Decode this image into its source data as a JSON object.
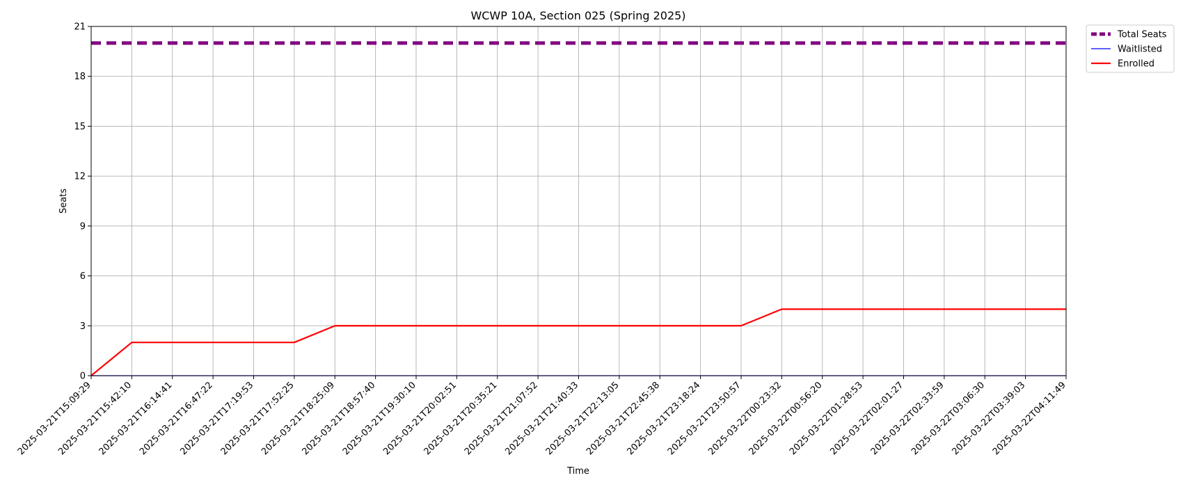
{
  "chart_data": {
    "type": "line",
    "title": "WCWP 10A, Section 025 (Spring 2025)",
    "xlabel": "Time",
    "ylabel": "Seats",
    "ylim": [
      0,
      21
    ],
    "yticks": [
      0,
      3,
      6,
      9,
      12,
      15,
      18,
      21
    ],
    "grid": true,
    "legend_position": "outside-top-right",
    "x": [
      "2025-03-21T15:09:29",
      "2025-03-21T15:42:10",
      "2025-03-21T16:14:41",
      "2025-03-21T16:47:22",
      "2025-03-21T17:19:53",
      "2025-03-21T17:52:25",
      "2025-03-21T18:25:09",
      "2025-03-21T18:57:40",
      "2025-03-21T19:30:10",
      "2025-03-21T20:02:51",
      "2025-03-21T20:35:21",
      "2025-03-21T21:07:52",
      "2025-03-21T21:40:33",
      "2025-03-21T22:13:05",
      "2025-03-21T22:45:38",
      "2025-03-21T23:18:24",
      "2025-03-21T23:50:57",
      "2025-03-22T00:23:32",
      "2025-03-22T00:56:20",
      "2025-03-22T01:28:53",
      "2025-03-22T02:01:27",
      "2025-03-22T02:33:59",
      "2025-03-22T03:06:30",
      "2025-03-22T03:39:03",
      "2025-03-22T04:11:49"
    ],
    "series": [
      {
        "name": "Total Seats",
        "color": "#800080",
        "style": "dashed",
        "values": [
          20,
          20,
          20,
          20,
          20,
          20,
          20,
          20,
          20,
          20,
          20,
          20,
          20,
          20,
          20,
          20,
          20,
          20,
          20,
          20,
          20,
          20,
          20,
          20,
          20
        ]
      },
      {
        "name": "Waitlisted",
        "color": "#0000ff",
        "style": "solid",
        "values": [
          0,
          0,
          0,
          0,
          0,
          0,
          0,
          0,
          0,
          0,
          0,
          0,
          0,
          0,
          0,
          0,
          0,
          0,
          0,
          0,
          0,
          0,
          0,
          0,
          0
        ]
      },
      {
        "name": "Enrolled",
        "color": "#ff0000",
        "style": "solid",
        "values": [
          0,
          2,
          2,
          2,
          2,
          2,
          3,
          3,
          3,
          3,
          3,
          3,
          3,
          3,
          3,
          3,
          3,
          4,
          4,
          4,
          4,
          4,
          4,
          4,
          4
        ]
      }
    ]
  }
}
